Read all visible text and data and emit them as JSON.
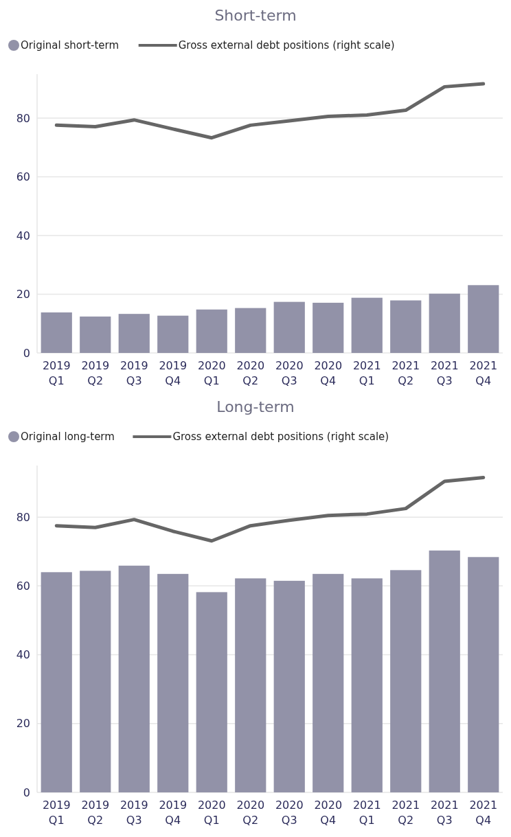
{
  "chart_data": [
    {
      "type": "bar",
      "title": "Short-term",
      "categories": [
        "2019 Q1",
        "2019 Q2",
        "2019 Q3",
        "2019 Q4",
        "2020 Q1",
        "2020 Q2",
        "2020 Q3",
        "2020 Q4",
        "2021 Q1",
        "2021 Q2",
        "2021 Q3",
        "2021 Q4"
      ],
      "series": [
        {
          "name": "Original short-term",
          "color": "#9292a8",
          "values": [
            13.8,
            12.4,
            13.3,
            12.7,
            14.8,
            15.3,
            17.4,
            17.1,
            18.8,
            17.9,
            20.2,
            23.1
          ]
        },
        {
          "name": "Gross external debt positions (right scale)",
          "type": "line",
          "color": "#666666",
          "values": [
            77.6,
            77.1,
            79.4,
            76.3,
            73.3,
            77.6,
            79.1,
            80.6,
            81.1,
            82.7,
            90.7,
            91.7
          ]
        }
      ],
      "ylim": [
        0,
        95
      ],
      "yticks": [
        0,
        20,
        40,
        60,
        80
      ],
      "grid": "y",
      "legend": "top left",
      "marker": "none",
      "line_style": "solid"
    },
    {
      "type": "bar",
      "title": "Long-term",
      "categories": [
        "2019 Q1",
        "2019 Q2",
        "2019 Q3",
        "2019 Q4",
        "2020 Q1",
        "2020 Q2",
        "2020 Q3",
        "2020 Q4",
        "2021 Q1",
        "2021 Q2",
        "2021 Q3",
        "2021 Q4"
      ],
      "series": [
        {
          "name": "Original long-term",
          "color": "#9292a8",
          "values": [
            64.0,
            64.4,
            65.9,
            63.5,
            58.2,
            62.2,
            61.5,
            63.5,
            62.2,
            64.6,
            70.3,
            68.4
          ]
        },
        {
          "name": "Gross external debt positions (right scale)",
          "type": "line",
          "color": "#666666",
          "values": [
            77.5,
            77.0,
            79.3,
            75.9,
            73.1,
            77.5,
            79.1,
            80.5,
            80.9,
            82.5,
            90.4,
            91.5
          ]
        }
      ],
      "ylim": [
        0,
        95
      ],
      "yticks": [
        0,
        20,
        40,
        60,
        80
      ],
      "grid": "y",
      "legend": "top left",
      "marker": "none",
      "line_style": "solid"
    }
  ]
}
